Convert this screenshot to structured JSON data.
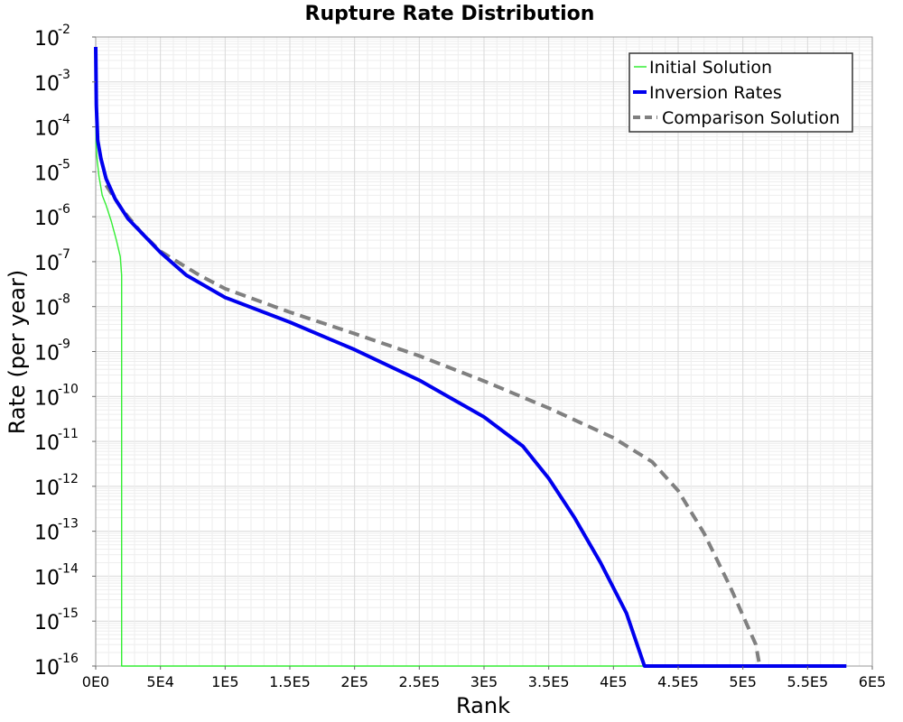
{
  "chart_data": {
    "type": "line",
    "title": "Rupture Rate Distribution",
    "xlabel": "Rank",
    "ylabel": "Rate (per year)",
    "xlim": [
      0,
      600000
    ],
    "ylim": [
      1e-16,
      0.01
    ],
    "yscale": "log",
    "grid": true,
    "legend_position": "top-right",
    "x_ticks": [
      {
        "value": 0,
        "label": "0E0"
      },
      {
        "value": 50000,
        "label": "5E4"
      },
      {
        "value": 100000,
        "label": "1E5"
      },
      {
        "value": 150000,
        "label": "1.5E5"
      },
      {
        "value": 200000,
        "label": "2E5"
      },
      {
        "value": 250000,
        "label": "2.5E5"
      },
      {
        "value": 300000,
        "label": "3E5"
      },
      {
        "value": 350000,
        "label": "3.5E5"
      },
      {
        "value": 400000,
        "label": "4E5"
      },
      {
        "value": 450000,
        "label": "4.5E5"
      },
      {
        "value": 500000,
        "label": "5E5"
      },
      {
        "value": 550000,
        "label": "5.5E5"
      },
      {
        "value": 600000,
        "label": "6E5"
      }
    ],
    "y_ticks": [
      {
        "value": -2,
        "base": "10",
        "exp": "-2"
      },
      {
        "value": -3,
        "base": "10",
        "exp": "-3"
      },
      {
        "value": -4,
        "base": "10",
        "exp": "-4"
      },
      {
        "value": -5,
        "base": "10",
        "exp": "-5"
      },
      {
        "value": -6,
        "base": "10",
        "exp": "-6"
      },
      {
        "value": -7,
        "base": "10",
        "exp": "-7"
      },
      {
        "value": -8,
        "base": "10",
        "exp": "-8"
      },
      {
        "value": -9,
        "base": "10",
        "exp": "-9"
      },
      {
        "value": -10,
        "base": "10",
        "exp": "-10"
      },
      {
        "value": -11,
        "base": "10",
        "exp": "-11"
      },
      {
        "value": -12,
        "base": "10",
        "exp": "-12"
      },
      {
        "value": -13,
        "base": "10",
        "exp": "-13"
      },
      {
        "value": -14,
        "base": "10",
        "exp": "-14"
      },
      {
        "value": -15,
        "base": "10",
        "exp": "-15"
      },
      {
        "value": -16,
        "base": "10",
        "exp": "-16"
      }
    ],
    "series": [
      {
        "name": "Initial Solution",
        "color": "#33ee33",
        "style": "solid",
        "width": "thin",
        "points": [
          [
            0,
            0.0005
          ],
          [
            300,
            4e-05
          ],
          [
            1000,
            2e-05
          ],
          [
            2500,
            8e-06
          ],
          [
            5000,
            3e-06
          ],
          [
            8000,
            1.8e-06
          ],
          [
            12000,
            8e-07
          ],
          [
            16000,
            3e-07
          ],
          [
            19000,
            1.3e-07
          ],
          [
            20000,
            5e-08
          ],
          [
            20000,
            1e-16
          ],
          [
            580000,
            1e-16
          ]
        ]
      },
      {
        "name": "Inversion Rates",
        "color": "#0000ee",
        "style": "solid",
        "width": "thick",
        "points": [
          [
            0,
            0.006
          ],
          [
            500,
            0.0003
          ],
          [
            1500,
            5e-05
          ],
          [
            4000,
            2e-05
          ],
          [
            8000,
            7e-06
          ],
          [
            15000,
            2.5e-06
          ],
          [
            25000,
            9e-07
          ],
          [
            35000,
            4.5e-07
          ],
          [
            50000,
            1.6e-07
          ],
          [
            70000,
            5e-08
          ],
          [
            100000,
            1.6e-08
          ],
          [
            150000,
            4.5e-09
          ],
          [
            200000,
            1.1e-09
          ],
          [
            250000,
            2.3e-10
          ],
          [
            300000,
            3.5e-11
          ],
          [
            330000,
            7.8e-12
          ],
          [
            350000,
            1.5e-12
          ],
          [
            370000,
            2e-13
          ],
          [
            390000,
            2e-14
          ],
          [
            410000,
            1.5e-15
          ],
          [
            424000,
            1e-16
          ],
          [
            580000,
            1e-16
          ]
        ]
      },
      {
        "name": "Comparison Solution",
        "color": "#808080",
        "style": "dashed",
        "width": "thick",
        "points": [
          [
            8000,
            5e-06
          ],
          [
            20000,
            1.5e-06
          ],
          [
            35000,
            4.5e-07
          ],
          [
            50000,
            1.7e-07
          ],
          [
            80000,
            5e-08
          ],
          [
            100000,
            2.5e-08
          ],
          [
            150000,
            7.5e-09
          ],
          [
            200000,
            2.5e-09
          ],
          [
            250000,
            8e-10
          ],
          [
            300000,
            2.2e-10
          ],
          [
            350000,
            5.5e-11
          ],
          [
            400000,
            1.2e-11
          ],
          [
            430000,
            3.5e-12
          ],
          [
            450000,
            8e-13
          ],
          [
            470000,
            9e-14
          ],
          [
            490000,
            6e-15
          ],
          [
            510000,
            3e-16
          ],
          [
            513000,
            1e-16
          ]
        ]
      }
    ]
  }
}
